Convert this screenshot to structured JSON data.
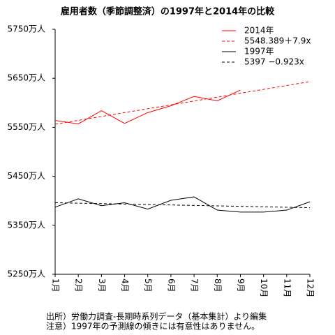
{
  "chart_data": {
    "type": "line",
    "title": "雇用者数（季節調整済）の1997年と2014年の比較",
    "categories": [
      "1月",
      "2月",
      "3月",
      "4月",
      "5月",
      "6月",
      "7月",
      "8月",
      "9月",
      "10月",
      "11月",
      "12月"
    ],
    "ylim": [
      5250,
      5750
    ],
    "yticks": [
      {
        "value": 5250,
        "label": "5250万人"
      },
      {
        "value": 5350,
        "label": "5350万人"
      },
      {
        "value": 5450,
        "label": "5450万人"
      },
      {
        "value": 5550,
        "label": "5550万人"
      },
      {
        "value": 5650,
        "label": "5650万人"
      },
      {
        "value": 5750,
        "label": "5750万人"
      }
    ],
    "legend": "top-right",
    "series": [
      {
        "name": "2014年",
        "color": "#ff0000",
        "dash": false,
        "values": [
          5564,
          5557,
          5584,
          5558,
          5580,
          5594,
          5613,
          5604,
          5626,
          null,
          null,
          null
        ]
      },
      {
        "name": "5548.389＋7.9x",
        "color": "#ff0000",
        "dash": true,
        "values": [
          5556.289,
          5564.189,
          5572.089,
          5579.989,
          5587.889,
          5595.789,
          5603.689,
          5611.589,
          5619.489,
          5627.389,
          5635.289,
          5643.189
        ]
      },
      {
        "name": "1997年",
        "color": "#000000",
        "dash": false,
        "values": [
          5387,
          5404,
          5390,
          5396,
          5383,
          5401,
          5408,
          5381,
          5377,
          5377,
          5381,
          5398
        ]
      },
      {
        "name": "5397 −0.923x",
        "color": "#000000",
        "dash": true,
        "values": [
          5396.077,
          5395.154,
          5394.231,
          5393.308,
          5392.385,
          5391.462,
          5390.539,
          5389.616,
          5388.693,
          5387.77,
          5386.847,
          5385.924
        ]
      }
    ],
    "notes": [
      "出所）労働力調査-長期時系列データ（基本集計）より編集",
      "注意）1997年の予測線の傾きには有意性はありません。"
    ]
  }
}
